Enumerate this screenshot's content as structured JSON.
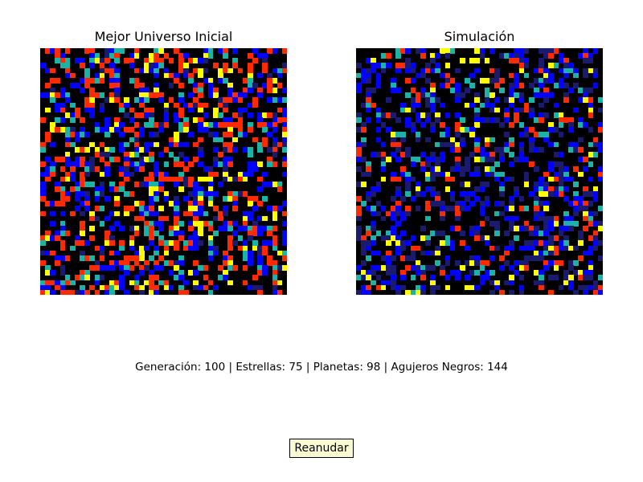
{
  "panels": {
    "left_title": "Mejor Universo Inicial",
    "right_title": "Simulación"
  },
  "status": {
    "text": "Generación: 100 | Estrellas: 75 | Planetas: 98 | Agujeros Negros: 144"
  },
  "controls": {
    "resume_label": "Reanudar"
  },
  "colors": {
    "background": "#000000",
    "palette": [
      "#000000",
      "#1a1a6e",
      "#0000ff",
      "#1ab3a6",
      "#ffff00",
      "#ff2a00"
    ],
    "button_bg": "#fafad2"
  },
  "grid": {
    "size": 50,
    "left_seed": 7,
    "right_seed": 42
  }
}
